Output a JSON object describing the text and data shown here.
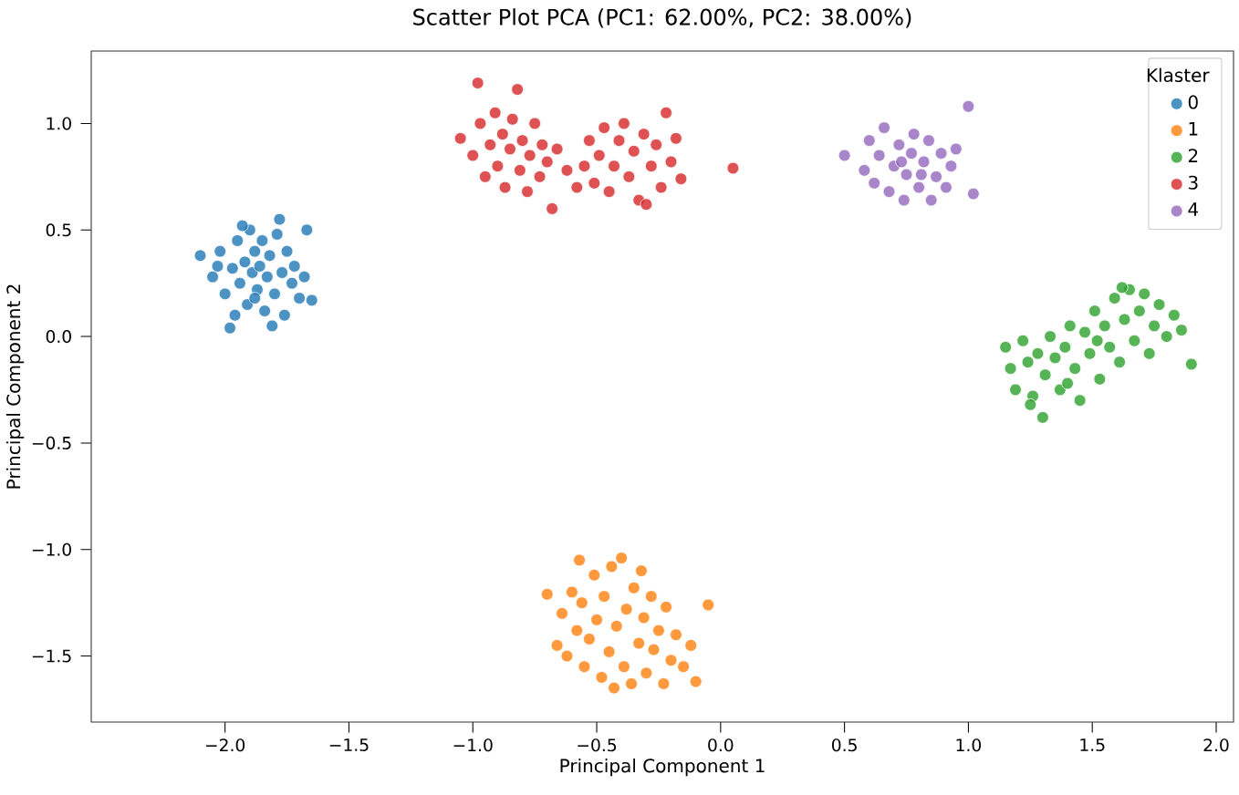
{
  "chart_data": {
    "type": "scatter",
    "title": "Scatter Plot PCA (PC1: 62.00%, PC2: 38.00%)",
    "xlabel": "Principal Component 1",
    "ylabel": "Principal Component 2",
    "legend_title": "Klaster",
    "legend": "top right",
    "grid": false,
    "marker": "circle",
    "xlim": [
      -2.54,
      2.07
    ],
    "ylim": [
      -1.81,
      1.34
    ],
    "xticks": [
      {
        "value": -2,
        "label": "−2.0"
      },
      {
        "value": -1.5,
        "label": "−1.5"
      },
      {
        "value": -1,
        "label": "−1.0"
      },
      {
        "value": -0.5,
        "label": "−0.5"
      },
      {
        "value": 0,
        "label": "0.0"
      },
      {
        "value": 0.5,
        "label": "0.5"
      },
      {
        "value": 1,
        "label": "1.0"
      },
      {
        "value": 1.5,
        "label": "1.5"
      },
      {
        "value": 2,
        "label": "2.0"
      }
    ],
    "yticks": [
      {
        "value": -1.5,
        "label": "−1.5"
      },
      {
        "value": -1,
        "label": "−1.0"
      },
      {
        "value": -0.5,
        "label": "−0.5"
      },
      {
        "value": 0,
        "label": "0.0"
      },
      {
        "value": 0.5,
        "label": "0.5"
      },
      {
        "value": 1,
        "label": "1.0"
      }
    ],
    "series": [
      {
        "name": "0",
        "color": "#1f77b4",
        "x": [
          -2.1,
          -2.05,
          -2.02,
          -2.0,
          -1.98,
          -1.97,
          -1.95,
          -1.94,
          -1.92,
          -1.91,
          -1.9,
          -1.89,
          -1.88,
          -1.87,
          -1.86,
          -1.85,
          -1.84,
          -1.83,
          -1.82,
          -1.8,
          -1.79,
          -1.78,
          -1.77,
          -1.76,
          -1.75,
          -1.73,
          -1.72,
          -1.7,
          -1.68,
          -1.67,
          -1.65,
          -2.03,
          -1.96,
          -1.93,
          -1.81,
          -1.88
        ],
        "values": [
          0.38,
          0.28,
          0.4,
          0.2,
          0.04,
          0.32,
          0.45,
          0.25,
          0.35,
          0.15,
          0.5,
          0.3,
          0.4,
          0.22,
          0.33,
          0.45,
          0.12,
          0.28,
          0.38,
          0.2,
          0.48,
          0.55,
          0.3,
          0.1,
          0.4,
          0.25,
          0.33,
          0.18,
          0.28,
          0.5,
          0.17,
          0.33,
          0.1,
          0.52,
          0.05,
          0.18
        ]
      },
      {
        "name": "1",
        "color": "#ff7f0e",
        "x": [
          -0.7,
          -0.66,
          -0.64,
          -0.62,
          -0.6,
          -0.58,
          -0.56,
          -0.55,
          -0.53,
          -0.51,
          -0.5,
          -0.48,
          -0.47,
          -0.45,
          -0.44,
          -0.42,
          -0.4,
          -0.39,
          -0.38,
          -0.36,
          -0.35,
          -0.33,
          -0.31,
          -0.3,
          -0.28,
          -0.27,
          -0.25,
          -0.23,
          -0.22,
          -0.2,
          -0.18,
          -0.15,
          -0.12,
          -0.1,
          -0.05,
          -0.43,
          -0.32,
          -0.57
        ],
        "values": [
          -1.21,
          -1.45,
          -1.3,
          -1.5,
          -1.2,
          -1.38,
          -1.25,
          -1.55,
          -1.42,
          -1.12,
          -1.33,
          -1.6,
          -1.22,
          -1.48,
          -1.08,
          -1.36,
          -1.04,
          -1.55,
          -1.28,
          -1.63,
          -1.18,
          -1.44,
          -1.32,
          -1.58,
          -1.22,
          -1.47,
          -1.38,
          -1.63,
          -1.27,
          -1.52,
          -1.4,
          -1.55,
          -1.45,
          -1.62,
          -1.26,
          -1.65,
          -1.1,
          -1.05
        ]
      },
      {
        "name": "2",
        "color": "#2ca02c",
        "x": [
          1.15,
          1.17,
          1.19,
          1.22,
          1.24,
          1.26,
          1.28,
          1.3,
          1.31,
          1.33,
          1.35,
          1.37,
          1.39,
          1.41,
          1.43,
          1.45,
          1.47,
          1.49,
          1.51,
          1.53,
          1.55,
          1.57,
          1.59,
          1.61,
          1.63,
          1.65,
          1.67,
          1.69,
          1.71,
          1.73,
          1.75,
          1.77,
          1.8,
          1.83,
          1.86,
          1.9,
          1.62,
          1.4,
          1.52,
          1.25
        ],
        "values": [
          -0.05,
          -0.15,
          -0.25,
          -0.02,
          -0.12,
          -0.28,
          -0.08,
          -0.38,
          -0.18,
          0.0,
          -0.1,
          -0.25,
          -0.05,
          0.05,
          -0.15,
          -0.3,
          0.02,
          -0.08,
          0.12,
          -0.2,
          0.05,
          -0.05,
          0.18,
          -0.12,
          0.08,
          0.22,
          -0.02,
          0.12,
          0.2,
          -0.08,
          0.05,
          0.15,
          0.0,
          0.1,
          0.03,
          -0.13,
          0.23,
          -0.22,
          -0.02,
          -0.32
        ]
      },
      {
        "name": "3",
        "color": "#d62728",
        "x": [
          -1.05,
          -1.0,
          -0.98,
          -0.97,
          -0.95,
          -0.93,
          -0.91,
          -0.9,
          -0.88,
          -0.87,
          -0.85,
          -0.84,
          -0.82,
          -0.81,
          -0.8,
          -0.78,
          -0.77,
          -0.75,
          -0.73,
          -0.72,
          -0.7,
          -0.68,
          -0.66,
          -0.62,
          -0.58,
          -0.55,
          -0.53,
          -0.51,
          -0.49,
          -0.47,
          -0.45,
          -0.43,
          -0.41,
          -0.39,
          -0.37,
          -0.35,
          -0.33,
          -0.31,
          -0.3,
          -0.28,
          -0.26,
          -0.24,
          -0.22,
          -0.2,
          -0.18,
          -0.16,
          0.05
        ],
        "values": [
          0.93,
          0.85,
          1.19,
          1.0,
          0.75,
          0.9,
          1.05,
          0.8,
          0.95,
          0.7,
          0.88,
          1.02,
          1.16,
          0.78,
          0.92,
          0.68,
          0.85,
          1.0,
          0.75,
          0.9,
          0.82,
          0.6,
          0.88,
          0.78,
          0.7,
          0.8,
          0.92,
          0.72,
          0.85,
          0.98,
          0.68,
          0.8,
          0.92,
          1.0,
          0.75,
          0.87,
          0.64,
          0.95,
          0.62,
          0.8,
          0.9,
          0.7,
          1.05,
          0.82,
          0.93,
          0.74,
          0.79
        ]
      },
      {
        "name": "4",
        "color": "#9467bd",
        "x": [
          0.5,
          0.58,
          0.6,
          0.62,
          0.64,
          0.66,
          0.68,
          0.7,
          0.72,
          0.74,
          0.75,
          0.77,
          0.78,
          0.8,
          0.82,
          0.84,
          0.85,
          0.87,
          0.89,
          0.91,
          0.93,
          0.95,
          1.0,
          1.02,
          0.73,
          0.81
        ],
        "values": [
          0.85,
          0.78,
          0.92,
          0.72,
          0.85,
          0.98,
          0.68,
          0.8,
          0.9,
          0.64,
          0.76,
          0.86,
          0.95,
          0.7,
          0.82,
          0.92,
          0.64,
          0.75,
          0.86,
          0.7,
          0.8,
          0.88,
          1.08,
          0.67,
          0.82,
          0.76
        ]
      }
    ]
  }
}
